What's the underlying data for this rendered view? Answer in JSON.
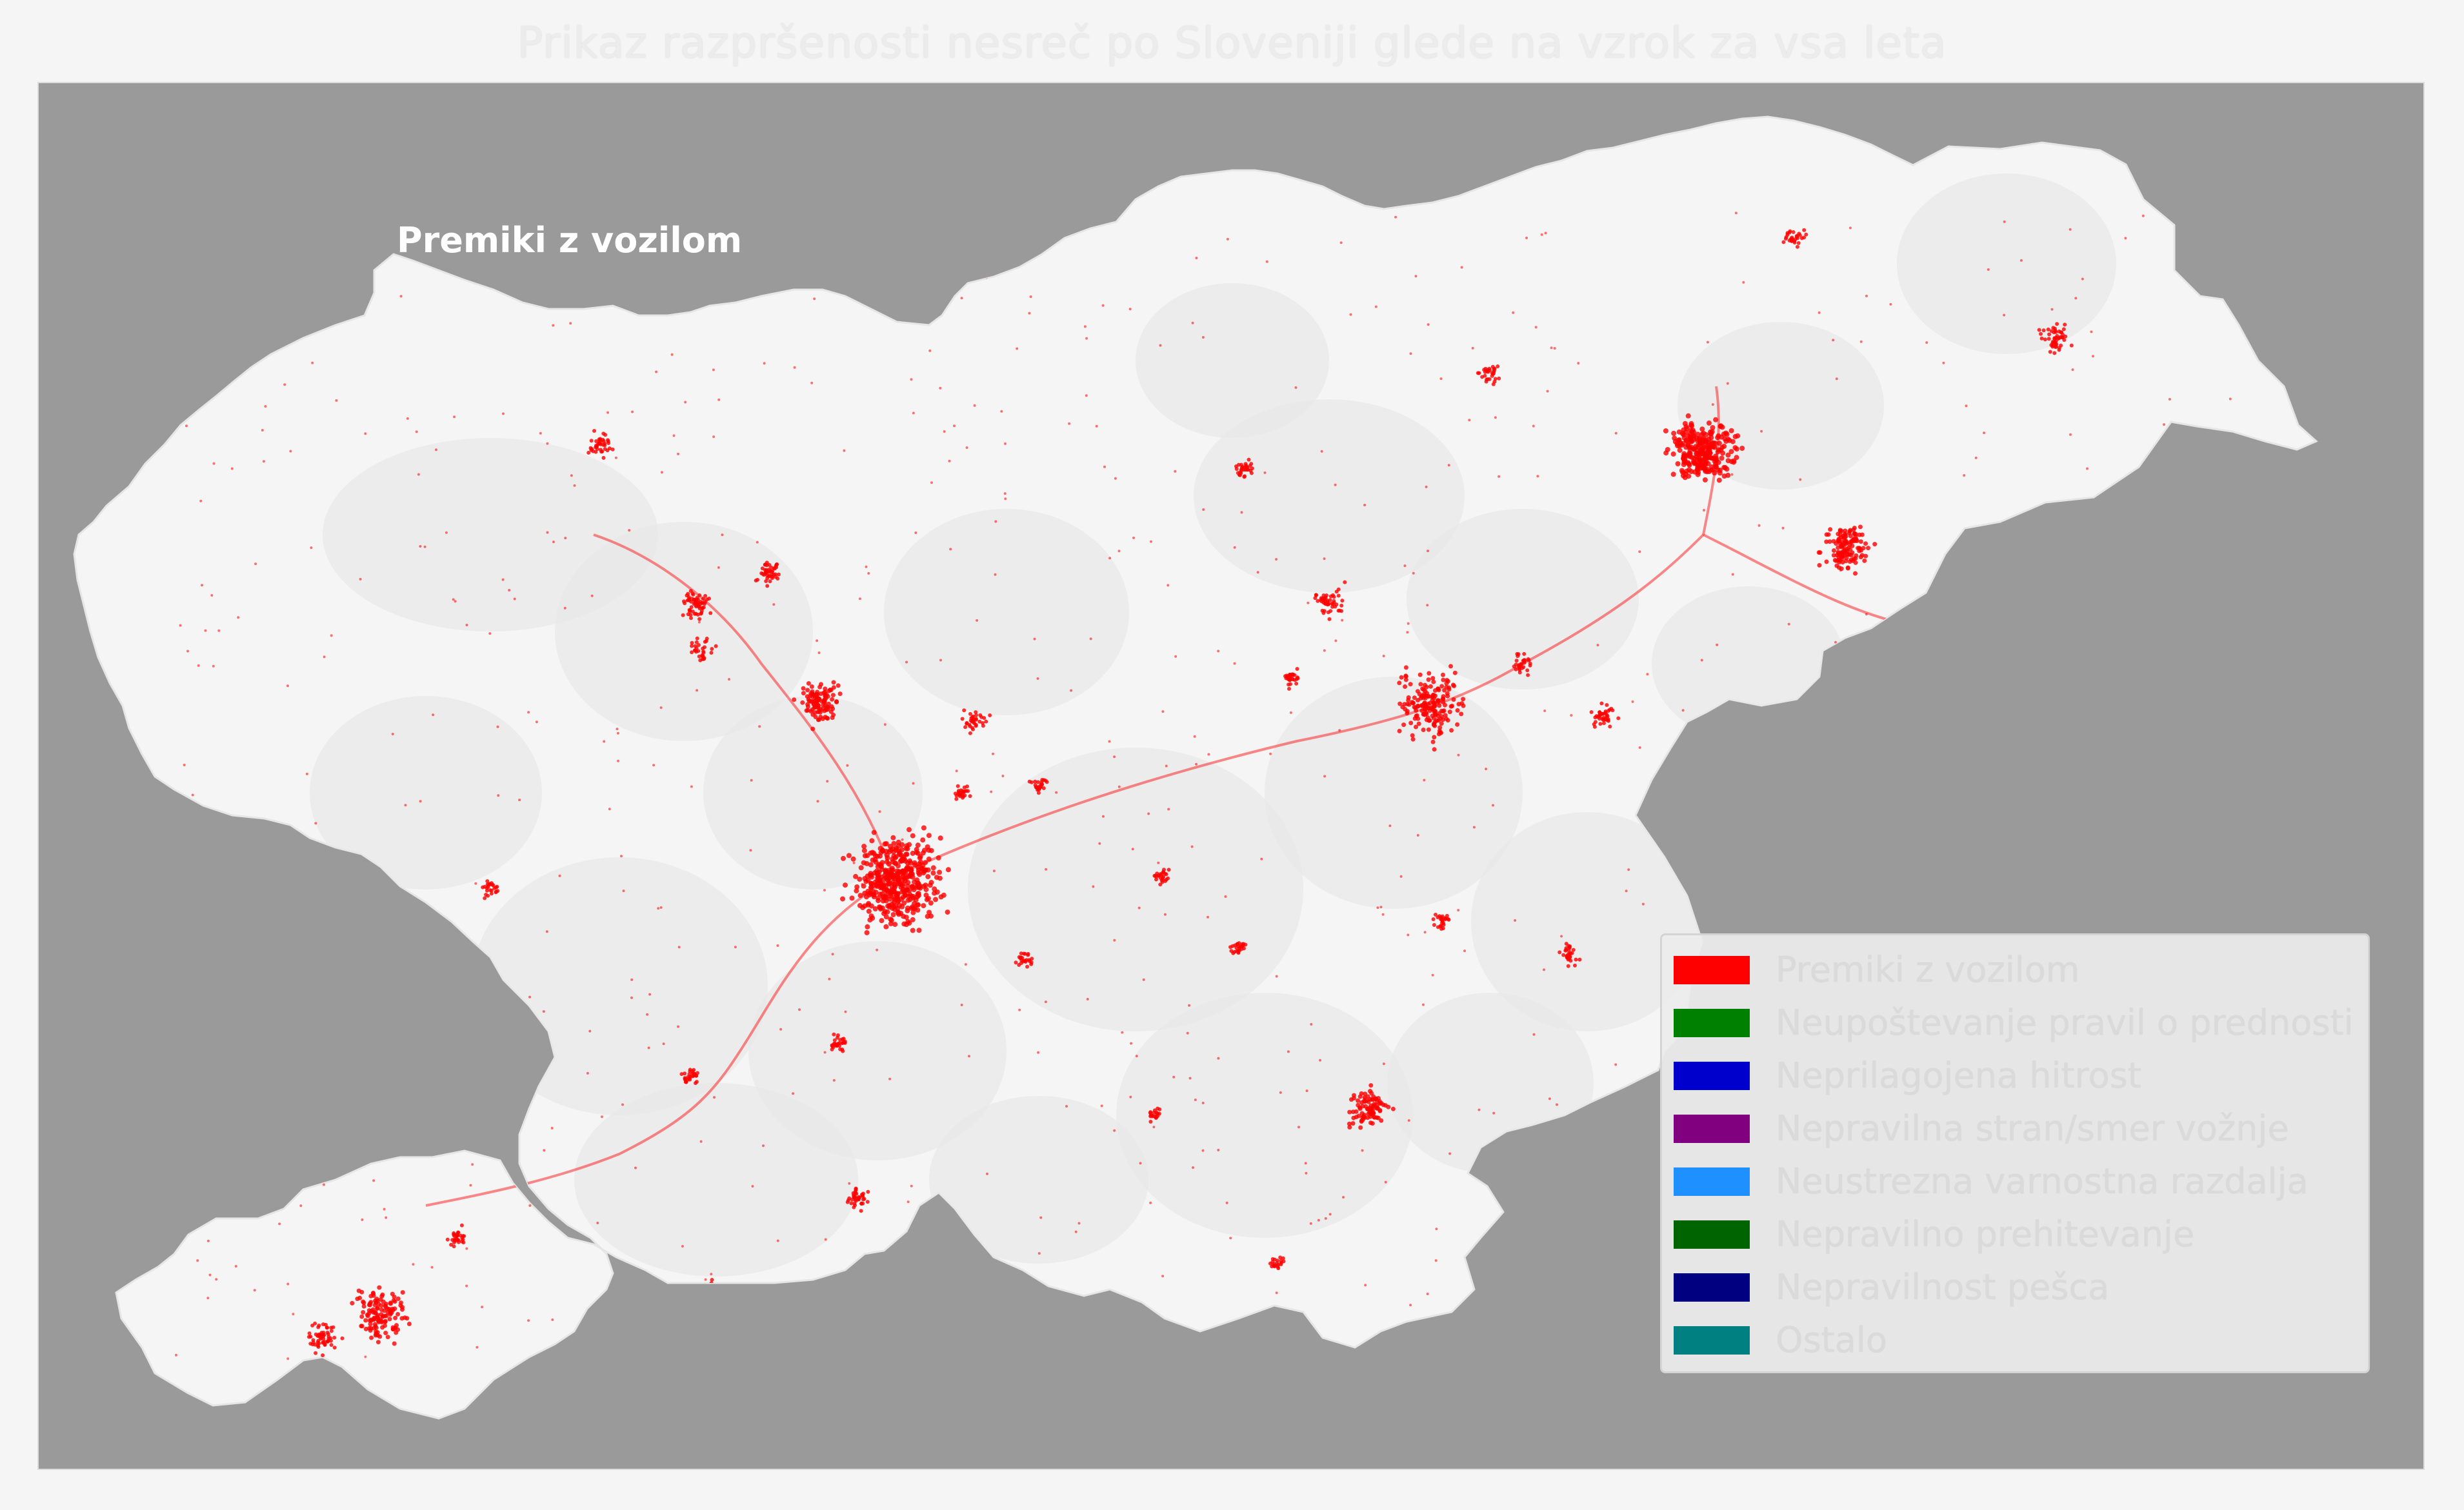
{
  "title": "Prikaz razpršenosti nesreč po Sloveniji glede na vzrok za vsa leta",
  "map": {
    "panel_label": "Premiki z vozilom",
    "background_color": "#9a9a9a",
    "land_color": "#f5f5f5",
    "region_shade_color": "#e8e8e8",
    "point_color": "#ff0000"
  },
  "legend": {
    "items": [
      {
        "label": "Premiki z vozilom",
        "color": "#ff0000"
      },
      {
        "label": "Neupoštevanje pravil o prednosti",
        "color": "#008000"
      },
      {
        "label": "Neprilagojena hitrost",
        "color": "#0000cd"
      },
      {
        "label": "Nepravilna stran/smer vožnje",
        "color": "#800080"
      },
      {
        "label": "Neustrezna varnostna razdalja",
        "color": "#1e90ff"
      },
      {
        "label": "Nepravilno prehitevanje",
        "color": "#006400"
      },
      {
        "label": "Nepravilnost pešca",
        "color": "#000080"
      },
      {
        "label": "Ostalo",
        "color": "#008080"
      }
    ]
  }
}
